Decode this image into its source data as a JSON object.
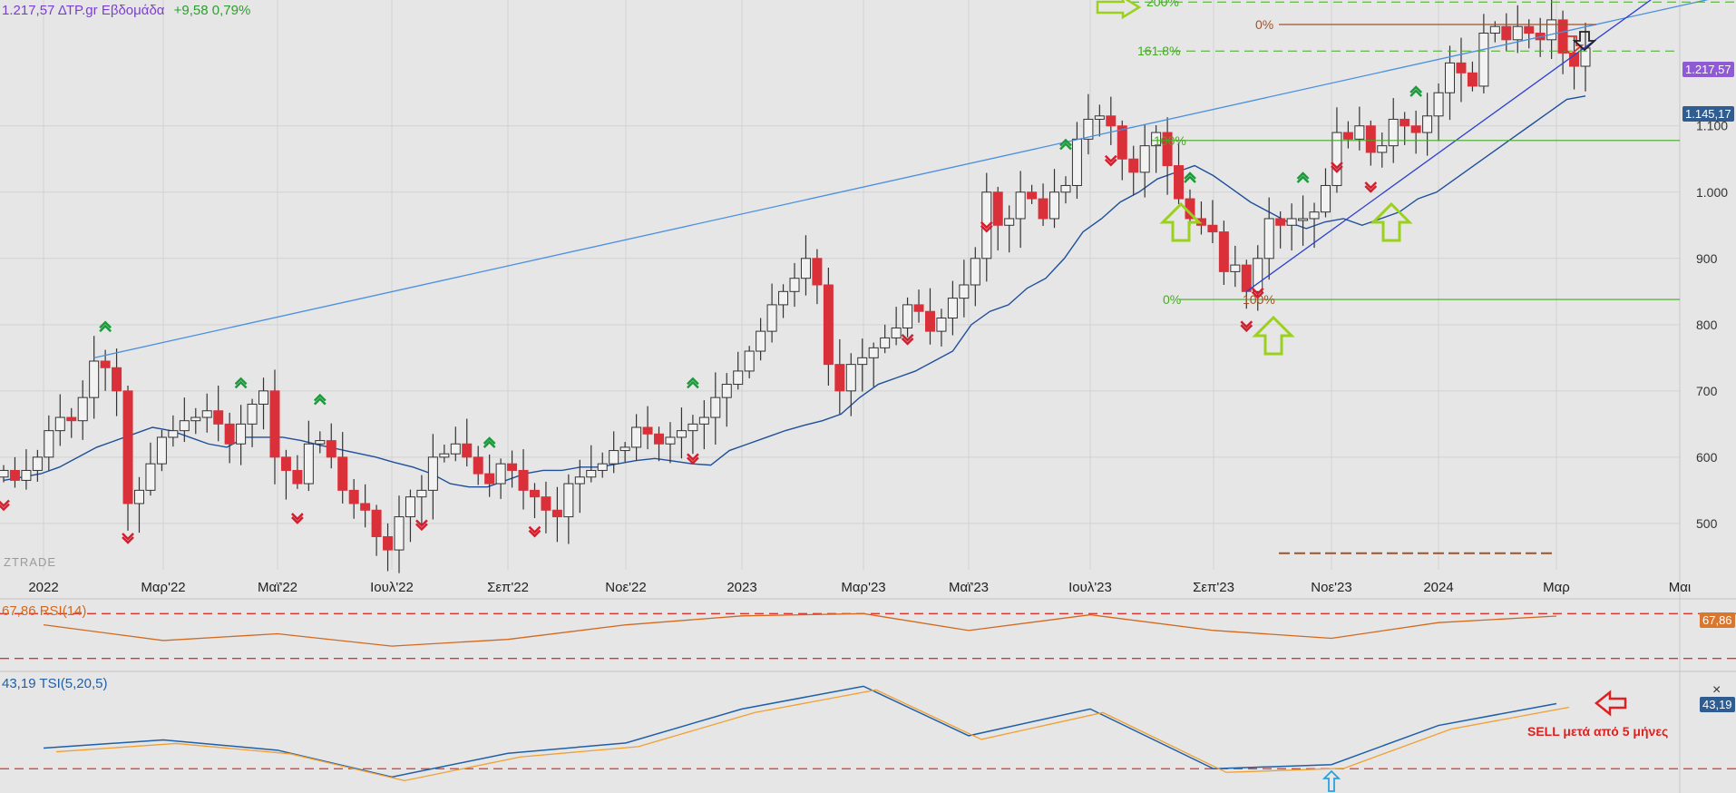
{
  "header": {
    "last_price": "1.217,57",
    "symbol": "ΔΤΡ.gr",
    "interval": "Εβδομάδα",
    "change": "+9,58 0,79%"
  },
  "brand": "ZTRADE",
  "price_tags": {
    "last": "1.217,57",
    "ma": "1.145,17",
    "rsi": "67,86",
    "tsi": "43,19"
  },
  "indicators": {
    "rsi_label": "67,86 RSI(14)",
    "tsi_label": "43,19 TSI(5,20,5)"
  },
  "annotation": {
    "sell_note": "SELL μετά από 5 μήνες"
  },
  "fib_labels": {
    "upper": [
      "0%",
      "161.8%",
      "200%"
    ],
    "lower": [
      "0%",
      "100%",
      "100%"
    ]
  },
  "colors": {
    "bull_body": "#f2f2f2",
    "bear_body": "#d9303a",
    "ma_line": "#1f4f9a",
    "trendline": "#4a8fe0",
    "fib_green": "#44aa22",
    "fib_brown": "#a0522d",
    "arrow_lime": "#9bd11c",
    "signal_up": "#1a9a3a",
    "signal_down": "#d02030",
    "rsi_line": "#d2691e",
    "tsi_line": "#1f5fa8",
    "tsi_signal": "#f0a030",
    "dash_red": "#e03030"
  },
  "chart_data": {
    "type": "candlestick",
    "title": "",
    "x_ticks": [
      "2022",
      "Μαρ'22",
      "Μαϊ'22",
      "Ιουλ'22",
      "Σεπ'22",
      "Νοε'22",
      "2023",
      "Μαρ'23",
      "Μαϊ'23",
      "Ιουλ'23",
      "Σεπ'23",
      "Νοε'23",
      "2024",
      "Μαρ",
      "Μαι"
    ],
    "y_ticks": [
      500,
      600,
      700,
      800,
      900,
      "1.000",
      "1.100"
    ],
    "ylim": [
      430,
      1290
    ],
    "close": [
      580,
      565,
      580,
      600,
      640,
      660,
      655,
      690,
      745,
      735,
      700,
      530,
      550,
      590,
      630,
      640,
      655,
      660,
      670,
      650,
      620,
      650,
      680,
      700,
      600,
      580,
      560,
      620,
      625,
      600,
      550,
      530,
      520,
      480,
      460,
      510,
      540,
      550,
      600,
      605,
      620,
      600,
      575,
      560,
      590,
      580,
      550,
      540,
      520,
      510,
      560,
      570,
      580,
      590,
      610,
      615,
      645,
      635,
      620,
      630,
      640,
      650,
      660,
      690,
      710,
      730,
      760,
      790,
      830,
      850,
      870,
      900,
      860,
      740,
      700,
      740,
      750,
      765,
      780,
      795,
      830,
      820,
      790,
      810,
      840,
      860,
      900,
      1000,
      950,
      960,
      1000,
      990,
      960,
      1000,
      1010,
      1080,
      1110,
      1115,
      1100,
      1050,
      1030,
      1070,
      1090,
      1040,
      990,
      960,
      950,
      940,
      880,
      890,
      850,
      900,
      960,
      950,
      960,
      960,
      970,
      1010,
      1090,
      1080,
      1100,
      1060,
      1070,
      1110,
      1100,
      1090,
      1115,
      1150,
      1195,
      1180,
      1160,
      1240,
      1250,
      1230,
      1250,
      1240,
      1230,
      1260,
      1210,
      1190,
      1217.57
    ],
    "ma": [
      565,
      570,
      575,
      585,
      600,
      615,
      625,
      635,
      645,
      640,
      630,
      620,
      615,
      630,
      630,
      630,
      625,
      618,
      612,
      606,
      600,
      592,
      585,
      575,
      560,
      555,
      555,
      565,
      575,
      580,
      580,
      585,
      585,
      590,
      595,
      598,
      594,
      590,
      588,
      610,
      620,
      630,
      640,
      648,
      655,
      665,
      690,
      710,
      720,
      730,
      745,
      760,
      800,
      820,
      830,
      855,
      870,
      900,
      940,
      960,
      985,
      1000,
      1020,
      1030,
      1040,
      1025,
      1005,
      985,
      970,
      955,
      945,
      955,
      960,
      950,
      960,
      970,
      990,
      1000,
      1020,
      1040,
      1060,
      1080,
      1100,
      1120,
      1140,
      1145.17
    ],
    "rsi": [
      {
        "x": "2022",
        "y": 60
      },
      {
        "x": "Μαρ'22",
        "y": 46
      },
      {
        "x": "Μαϊ'22",
        "y": 52
      },
      {
        "x": "Ιουλ'22",
        "y": 41
      },
      {
        "x": "Σεπ'22",
        "y": 47
      },
      {
        "x": "Νοε'22",
        "y": 60
      },
      {
        "x": "2023",
        "y": 68
      },
      {
        "x": "Μαρ'23",
        "y": 70
      },
      {
        "x": "Μαϊ'23",
        "y": 55
      },
      {
        "x": "Ιουλ'23",
        "y": 69
      },
      {
        "x": "Σεπ'23",
        "y": 55
      },
      {
        "x": "Νοε'23",
        "y": 48
      },
      {
        "x": "2024",
        "y": 62
      },
      {
        "x": "Μαρ",
        "y": 67.86
      }
    ],
    "tsi": [
      {
        "x": "2022",
        "y": 0
      },
      {
        "x": "Μαρ'22",
        "y": 8
      },
      {
        "x": "Μαϊ'22",
        "y": -2
      },
      {
        "x": "Ιουλ'22",
        "y": -28
      },
      {
        "x": "Σεπ'22",
        "y": -5
      },
      {
        "x": "Νοε'22",
        "y": 5
      },
      {
        "x": "2023",
        "y": 38
      },
      {
        "x": "Μαρ'23",
        "y": 60
      },
      {
        "x": "Μαϊ'23",
        "y": 12
      },
      {
        "x": "Ιουλ'23",
        "y": 38
      },
      {
        "x": "Σεπ'23",
        "y": -20
      },
      {
        "x": "Νοε'23",
        "y": -16
      },
      {
        "x": "2024",
        "y": 22
      },
      {
        "x": "Μαρ",
        "y": 43.19
      }
    ],
    "rsi_levels": [
      70,
      30
    ],
    "grid": true
  }
}
